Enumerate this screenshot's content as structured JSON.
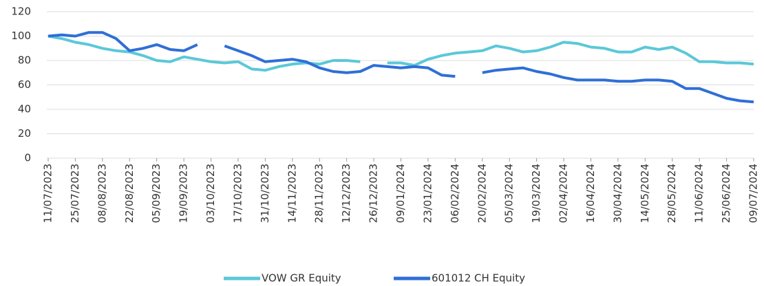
{
  "chart_data": {
    "type": "line",
    "x": [
      "11/07/2023",
      "18/07/2023",
      "25/07/2023",
      "01/08/2023",
      "08/08/2023",
      "15/08/2023",
      "22/08/2023",
      "29/08/2023",
      "05/09/2023",
      "12/09/2023",
      "19/09/2023",
      "26/09/2023",
      "03/10/2023",
      "10/10/2023",
      "17/10/2023",
      "24/10/2023",
      "31/10/2023",
      "07/11/2023",
      "14/11/2023",
      "21/11/2023",
      "28/11/2023",
      "05/12/2023",
      "12/12/2023",
      "19/12/2023",
      "26/12/2023",
      "02/01/2024",
      "09/01/2024",
      "16/01/2024",
      "23/01/2024",
      "30/01/2024",
      "06/02/2024",
      "13/02/2024",
      "20/02/2024",
      "27/02/2024",
      "05/03/2024",
      "12/03/2024",
      "19/03/2024",
      "26/03/2024",
      "02/04/2024",
      "09/04/2024",
      "16/04/2024",
      "23/04/2024",
      "30/04/2024",
      "07/05/2024",
      "14/05/2024",
      "21/05/2024",
      "28/05/2024",
      "04/06/2024",
      "11/06/2024",
      "18/06/2024",
      "25/06/2024",
      "02/07/2024",
      "09/07/2024"
    ],
    "series": [
      {
        "name": "VOW GR Equity",
        "color": "#5bc8d8",
        "values": [
          100,
          98,
          95,
          93,
          90,
          88,
          87,
          84,
          80,
          79,
          83,
          81,
          79,
          78,
          79,
          73,
          72,
          75,
          77,
          78,
          77,
          80,
          80,
          79,
          null,
          78,
          78,
          76,
          81,
          84,
          86,
          87,
          88,
          92,
          90,
          87,
          88,
          91,
          95,
          94,
          91,
          90,
          87,
          87,
          91,
          89,
          91,
          86,
          79,
          79,
          78,
          78,
          77
        ]
      },
      {
        "name": "601012 CH Equity",
        "color": "#2f6fd6",
        "values": [
          100,
          101,
          100,
          103,
          103,
          98,
          88,
          90,
          93,
          89,
          88,
          93,
          null,
          92,
          88,
          84,
          79,
          80,
          81,
          79,
          74,
          71,
          70,
          71,
          76,
          75,
          74,
          75,
          74,
          68,
          67,
          null,
          70,
          72,
          73,
          74,
          71,
          69,
          66,
          64,
          64,
          64,
          63,
          63,
          64,
          64,
          63,
          57,
          57,
          53,
          49,
          47,
          46
        ]
      }
    ],
    "xlim": [
      "11/07/2023",
      "09/07/2024"
    ],
    "xticks": [
      "11/07/2023",
      "25/07/2023",
      "08/08/2023",
      "22/08/2023",
      "05/09/2023",
      "19/09/2023",
      "03/10/2023",
      "17/10/2023",
      "31/10/2023",
      "14/11/2023",
      "28/11/2023",
      "12/12/2023",
      "26/12/2023",
      "09/01/2024",
      "23/01/2024",
      "06/02/2024",
      "20/02/2024",
      "05/03/2024",
      "19/03/2024",
      "02/04/2024",
      "16/04/2024",
      "30/04/2024",
      "14/05/2024",
      "28/05/2024",
      "11/06/2024",
      "25/06/2024",
      "09/07/2024"
    ],
    "ylim": [
      0,
      120
    ],
    "yticks": [
      0,
      20,
      40,
      60,
      80,
      100,
      120
    ],
    "grid": true,
    "legend": "bottom"
  }
}
